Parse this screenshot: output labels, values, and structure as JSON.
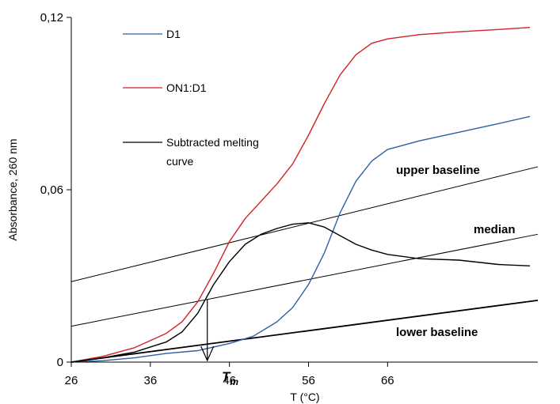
{
  "chart_data": {
    "type": "line",
    "xlabel": "T (°C)",
    "ylabel": "Absorbance, 260 nm",
    "xlim": [
      26,
      85
    ],
    "ylim": [
      0,
      0.12
    ],
    "x_ticks": [
      26,
      36,
      46,
      56,
      66
    ],
    "y_ticks": [
      0,
      0.06,
      0.12
    ],
    "x_tick_labels": [
      "26",
      "36",
      "46",
      "56",
      "66"
    ],
    "y_tick_labels": [
      "0",
      "0,06",
      "0,12"
    ],
    "grid": false,
    "legend_position": "top-left",
    "series": [
      {
        "name": "D1",
        "color": "#2e5fa3",
        "x": [
          26,
          30,
          34,
          38,
          42,
          46,
          49,
          52,
          54,
          56,
          58,
          60,
          62,
          64,
          66,
          70,
          75,
          80,
          84
        ],
        "y": [
          0,
          0.0005,
          0.0015,
          0.003,
          0.004,
          0.0065,
          0.009,
          0.014,
          0.019,
          0.027,
          0.038,
          0.052,
          0.063,
          0.07,
          0.074,
          0.077,
          0.08,
          0.083,
          0.0855
        ]
      },
      {
        "name": "ON1:D1",
        "color": "#d42027",
        "x": [
          26,
          30,
          34,
          38,
          40,
          42,
          44,
          46,
          48,
          50,
          52,
          54,
          56,
          58,
          60,
          62,
          64,
          66,
          70,
          75,
          80,
          84
        ],
        "y": [
          0,
          0.002,
          0.005,
          0.01,
          0.014,
          0.021,
          0.031,
          0.042,
          0.05,
          0.056,
          0.062,
          0.069,
          0.079,
          0.09,
          0.1,
          0.107,
          0.111,
          0.1125,
          0.114,
          0.115,
          0.1158,
          0.1165
        ]
      },
      {
        "name": "Subtracted melting curve",
        "color": "#000000",
        "x": [
          26,
          30,
          34,
          38,
          40,
          42,
          44,
          46,
          48,
          50,
          52,
          54,
          56,
          58,
          60,
          62,
          64,
          66,
          70,
          75,
          80,
          84
        ],
        "y": [
          0,
          0.0015,
          0.0035,
          0.007,
          0.0105,
          0.017,
          0.027,
          0.035,
          0.041,
          0.0445,
          0.0465,
          0.048,
          0.0485,
          0.047,
          0.044,
          0.041,
          0.039,
          0.0375,
          0.036,
          0.0355,
          0.034,
          0.0335
        ]
      }
    ],
    "reference_lines": [
      {
        "name": "upper baseline",
        "x": [
          26,
          85
        ],
        "y": [
          0.028,
          0.068
        ]
      },
      {
        "name": "median",
        "x": [
          26,
          85
        ],
        "y": [
          0.0125,
          0.0445
        ]
      },
      {
        "name": "lower baseline",
        "x": [
          26,
          85
        ],
        "y": [
          0.0,
          0.0215
        ]
      }
    ],
    "annotations": {
      "upper_baseline": "upper baseline",
      "median": "median",
      "lower_baseline": "lower baseline",
      "tm_symbol": "T",
      "tm_subscript": "m",
      "tm_value": 43.2
    }
  }
}
